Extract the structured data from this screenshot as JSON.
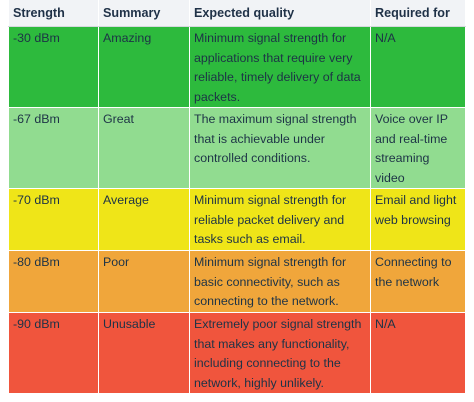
{
  "table": {
    "headers": [
      "Strength",
      "Summary",
      "Expected quality",
      "Required for"
    ],
    "rows": [
      {
        "strength": "-30 dBm",
        "summary": "Amazing",
        "quality": "Minimum signal strength for applications that require very reliable, timely delivery of data packets.",
        "required": "N/A",
        "color": "#2dba3d"
      },
      {
        "strength": "-67 dBm",
        "summary": "Great",
        "quality": "The maximum signal strength that is achievable under controlled conditions.",
        "required": "Voice over IP and real-time streaming video",
        "color": "#91dc90"
      },
      {
        "strength": "-70 dBm",
        "summary": "Average",
        "quality": "Minimum signal strength for reliable packet delivery and tasks such as email.",
        "required": "Email and light web browsing",
        "color": "#efe518"
      },
      {
        "strength": "-80 dBm",
        "summary": "Poor",
        "quality": "Minimum signal strength for basic connectivity, such as connecting to the network.",
        "required": "Connecting to the network",
        "color": "#f0a63b"
      },
      {
        "strength": "-90 dBm",
        "summary": "Unusable",
        "quality": "Extremely poor signal strength that makes any functionality, including connecting to the network, highly unlikely.",
        "required": "N/A",
        "color": "#f0553d"
      }
    ]
  }
}
